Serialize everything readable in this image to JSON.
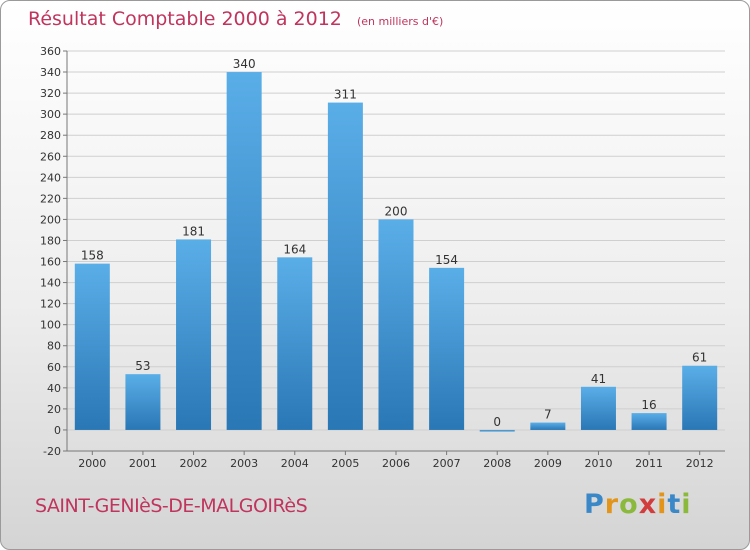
{
  "header": {
    "title": "Résultat Comptable 2000 à 2012",
    "subtitle": "(en milliers d'€)"
  },
  "footer": {
    "commune": "SAINT-GENIèS-DE-MALGOIRèS",
    "logo": "Proxiti"
  },
  "colors": {
    "title": "#c0345d",
    "bar_light": "#5aaee8",
    "bar_dark": "#2a77b5",
    "grid": "#cfcfcf",
    "axis_text": "#333333"
  },
  "chart_data": {
    "type": "bar",
    "title": "Résultat Comptable 2000 à 2012",
    "subtitle": "(en milliers d'€)",
    "xlabel": "",
    "ylabel": "",
    "categories": [
      "2000",
      "2001",
      "2002",
      "2003",
      "2004",
      "2005",
      "2006",
      "2007",
      "2008",
      "2009",
      "2010",
      "2011",
      "2012"
    ],
    "values": [
      158,
      53,
      181,
      340,
      164,
      311,
      200,
      154,
      0,
      7,
      41,
      16,
      61
    ],
    "ylim": [
      -20,
      360
    ],
    "yticks": [
      -20,
      0,
      20,
      40,
      60,
      80,
      100,
      120,
      140,
      160,
      180,
      200,
      220,
      240,
      260,
      280,
      300,
      320,
      340,
      360
    ],
    "grid": true,
    "legend": "none"
  }
}
